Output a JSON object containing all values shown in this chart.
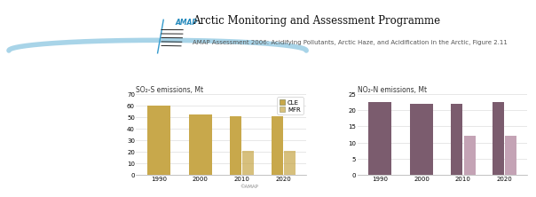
{
  "title": "Arctic Monitoring and Assessment Programme",
  "subtitle": "AMAP Assessment 2006: Acidifying Pollutants, Arctic Haze, and Acidification in the Arctic, Figure 2.11",
  "copyright": "©AMAP",
  "sox_label": "SO₂-S emissions, Mt",
  "nox_label": "NO₂-N emissions, Mt",
  "years": [
    1990,
    2000,
    2010,
    2020
  ],
  "sox_cle": [
    60,
    52,
    51,
    51
  ],
  "sox_mfr": [
    0,
    0,
    21,
    21
  ],
  "nox_cle": [
    22.5,
    22,
    22,
    22.5
  ],
  "nox_mfr": [
    0,
    0,
    12,
    12
  ],
  "sox_ylim": [
    0,
    70
  ],
  "sox_yticks": [
    0,
    10,
    20,
    30,
    40,
    50,
    60,
    70
  ],
  "nox_ylim": [
    0,
    25
  ],
  "nox_yticks": [
    0,
    5,
    10,
    15,
    20,
    25
  ],
  "color_cle_sox": "#C8A84B",
  "color_mfr_sox": "#C8A84B",
  "color_cle_nox": "#7B5C6E",
  "color_mfr_nox": "#C4A3B5",
  "bg_color": "#FFFFFF",
  "grid_color": "#DDDDDD",
  "title_fontsize": 8.5,
  "subtitle_fontsize": 5.0,
  "axis_label_fontsize": 5.5,
  "tick_fontsize": 5.0,
  "legend_fontsize": 5.0
}
